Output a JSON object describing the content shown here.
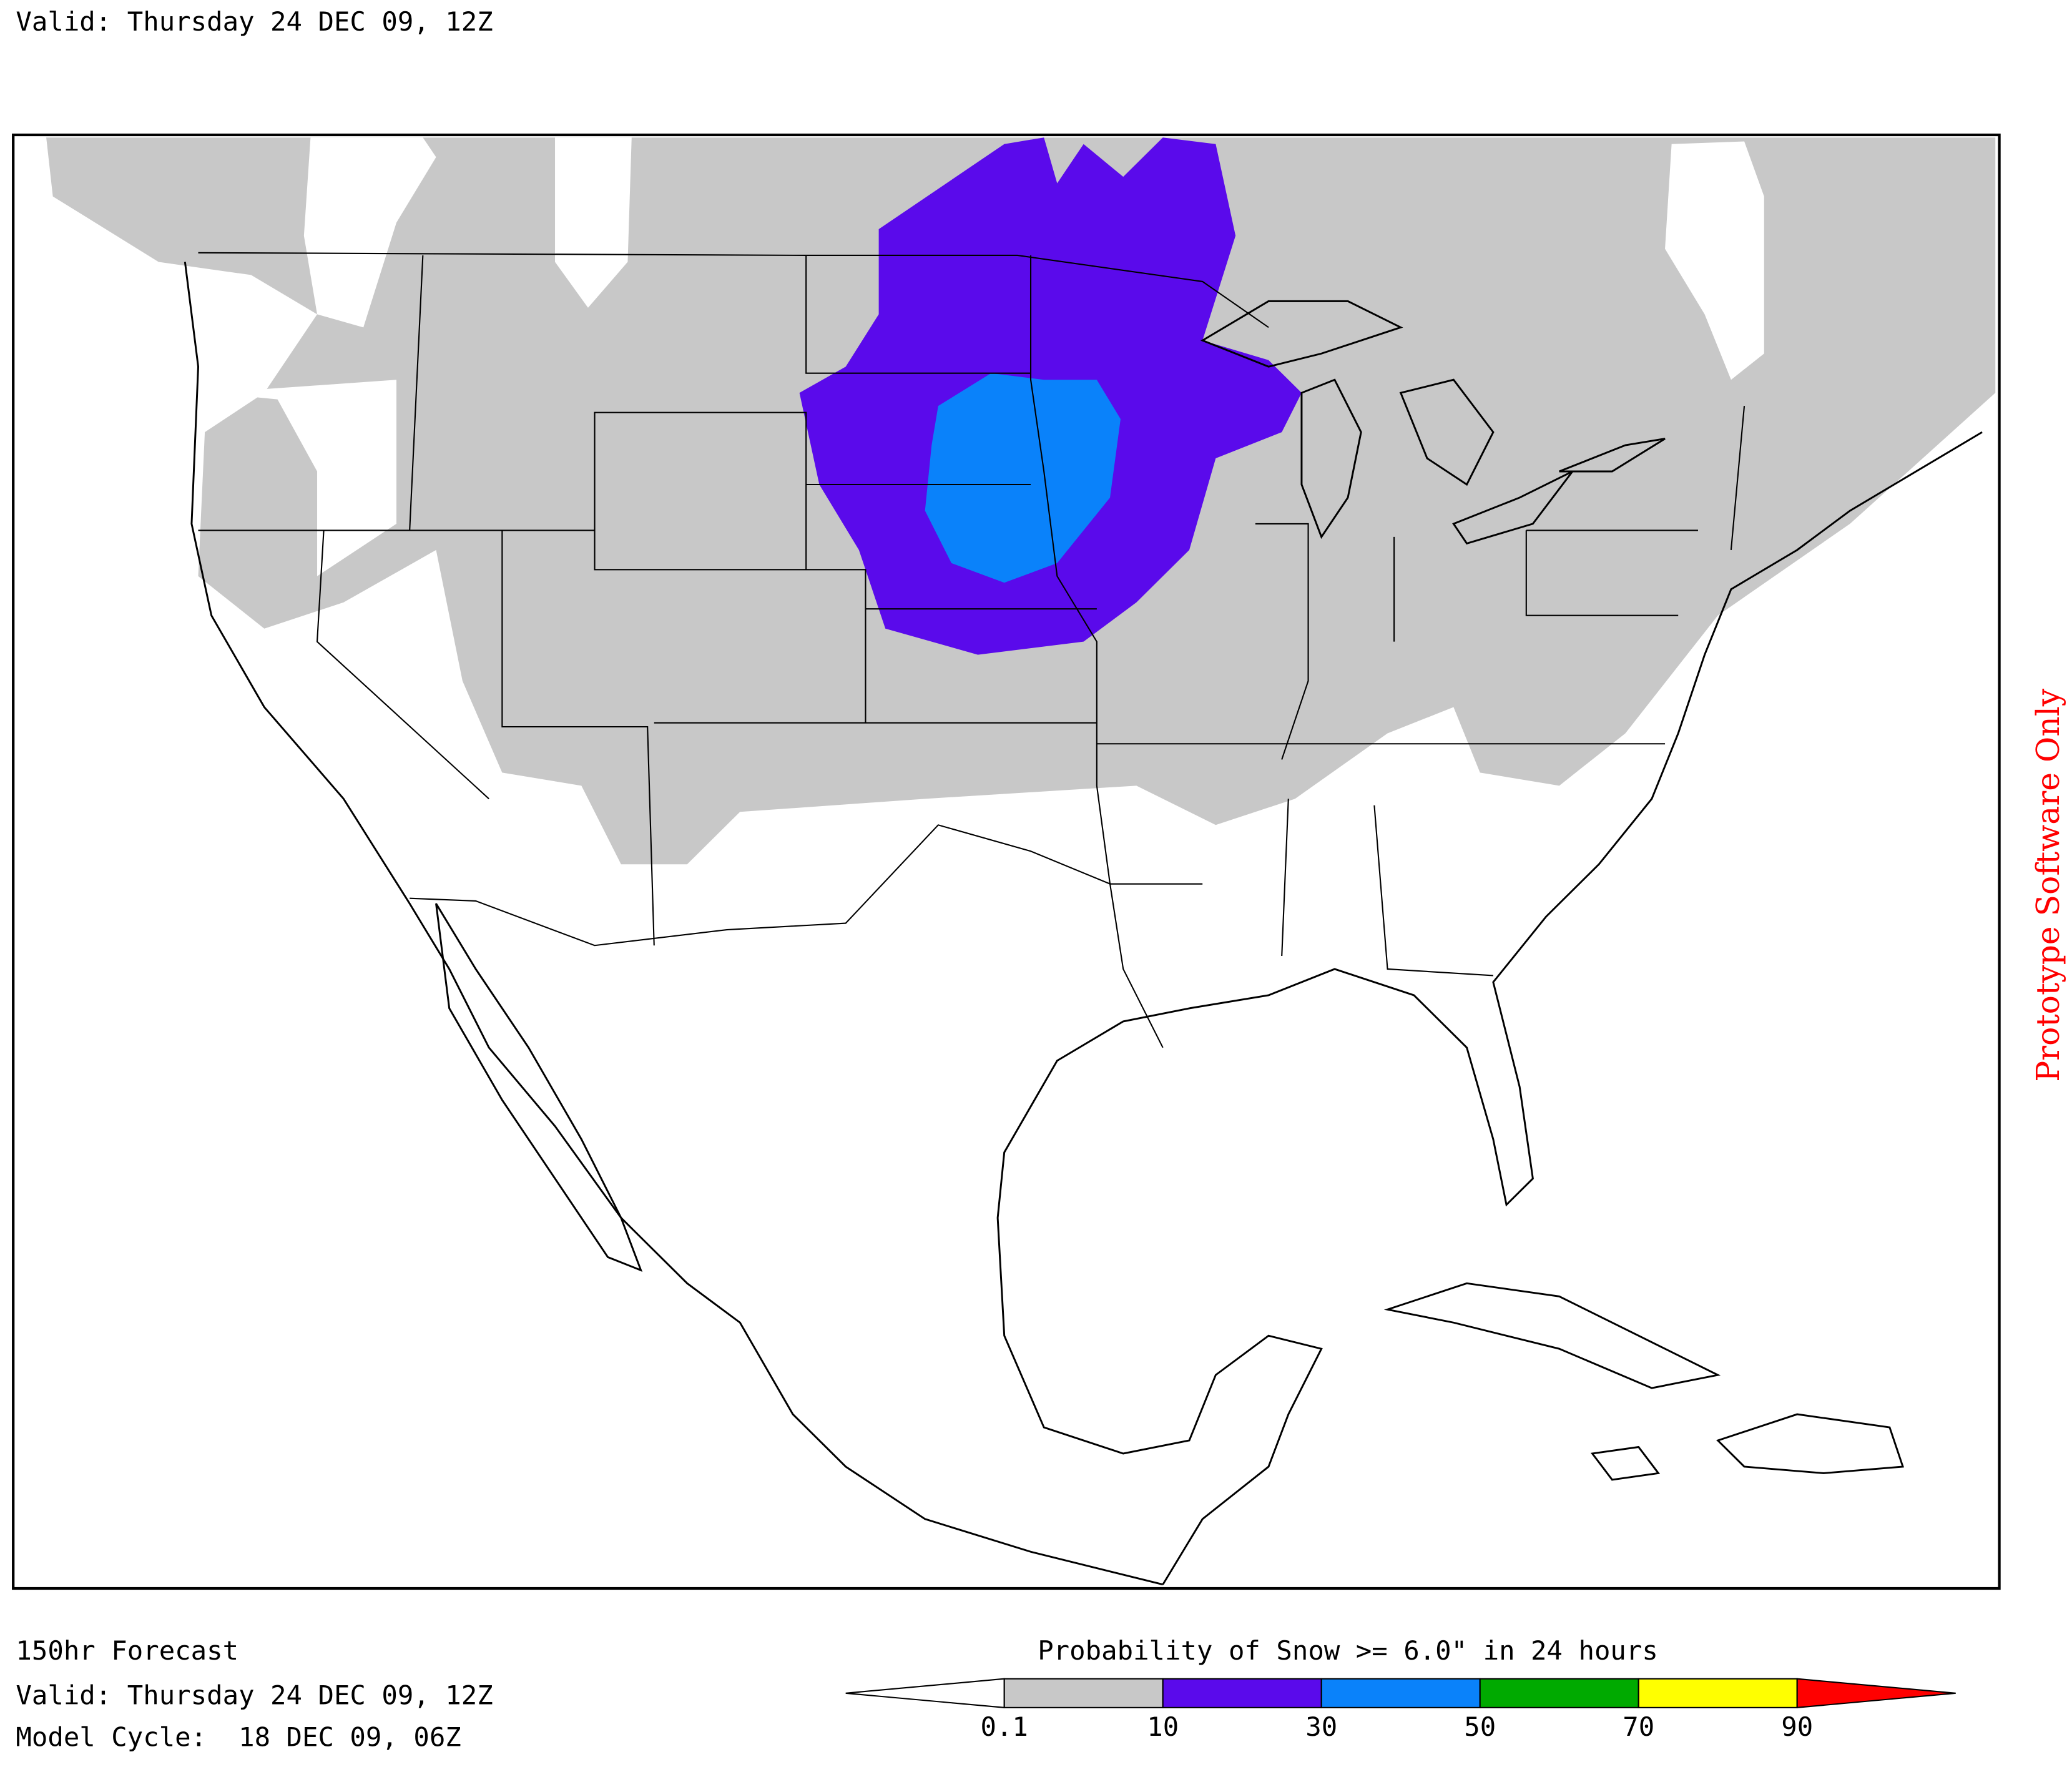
{
  "header": {
    "valid": "Valid: Thursday 24 DEC 09, 12Z"
  },
  "footer": {
    "forecast": "150hr Forecast",
    "valid": "Valid: Thursday 24 DEC 09, 12Z",
    "model_cycle": "Model Cycle:  18 DEC 09, 06Z"
  },
  "legend": {
    "title": "Probability of Snow >= 6.0\" in 24 hours",
    "colors": [
      "#ffffff",
      "#c8c8c8",
      "#5a0aeb",
      "#0a82fa",
      "#00aa00",
      "#ffff00",
      "#ff0000"
    ],
    "ticks": [
      0.1,
      10,
      30,
      50,
      70,
      90
    ]
  },
  "watermark": "Prototype Software Only"
}
